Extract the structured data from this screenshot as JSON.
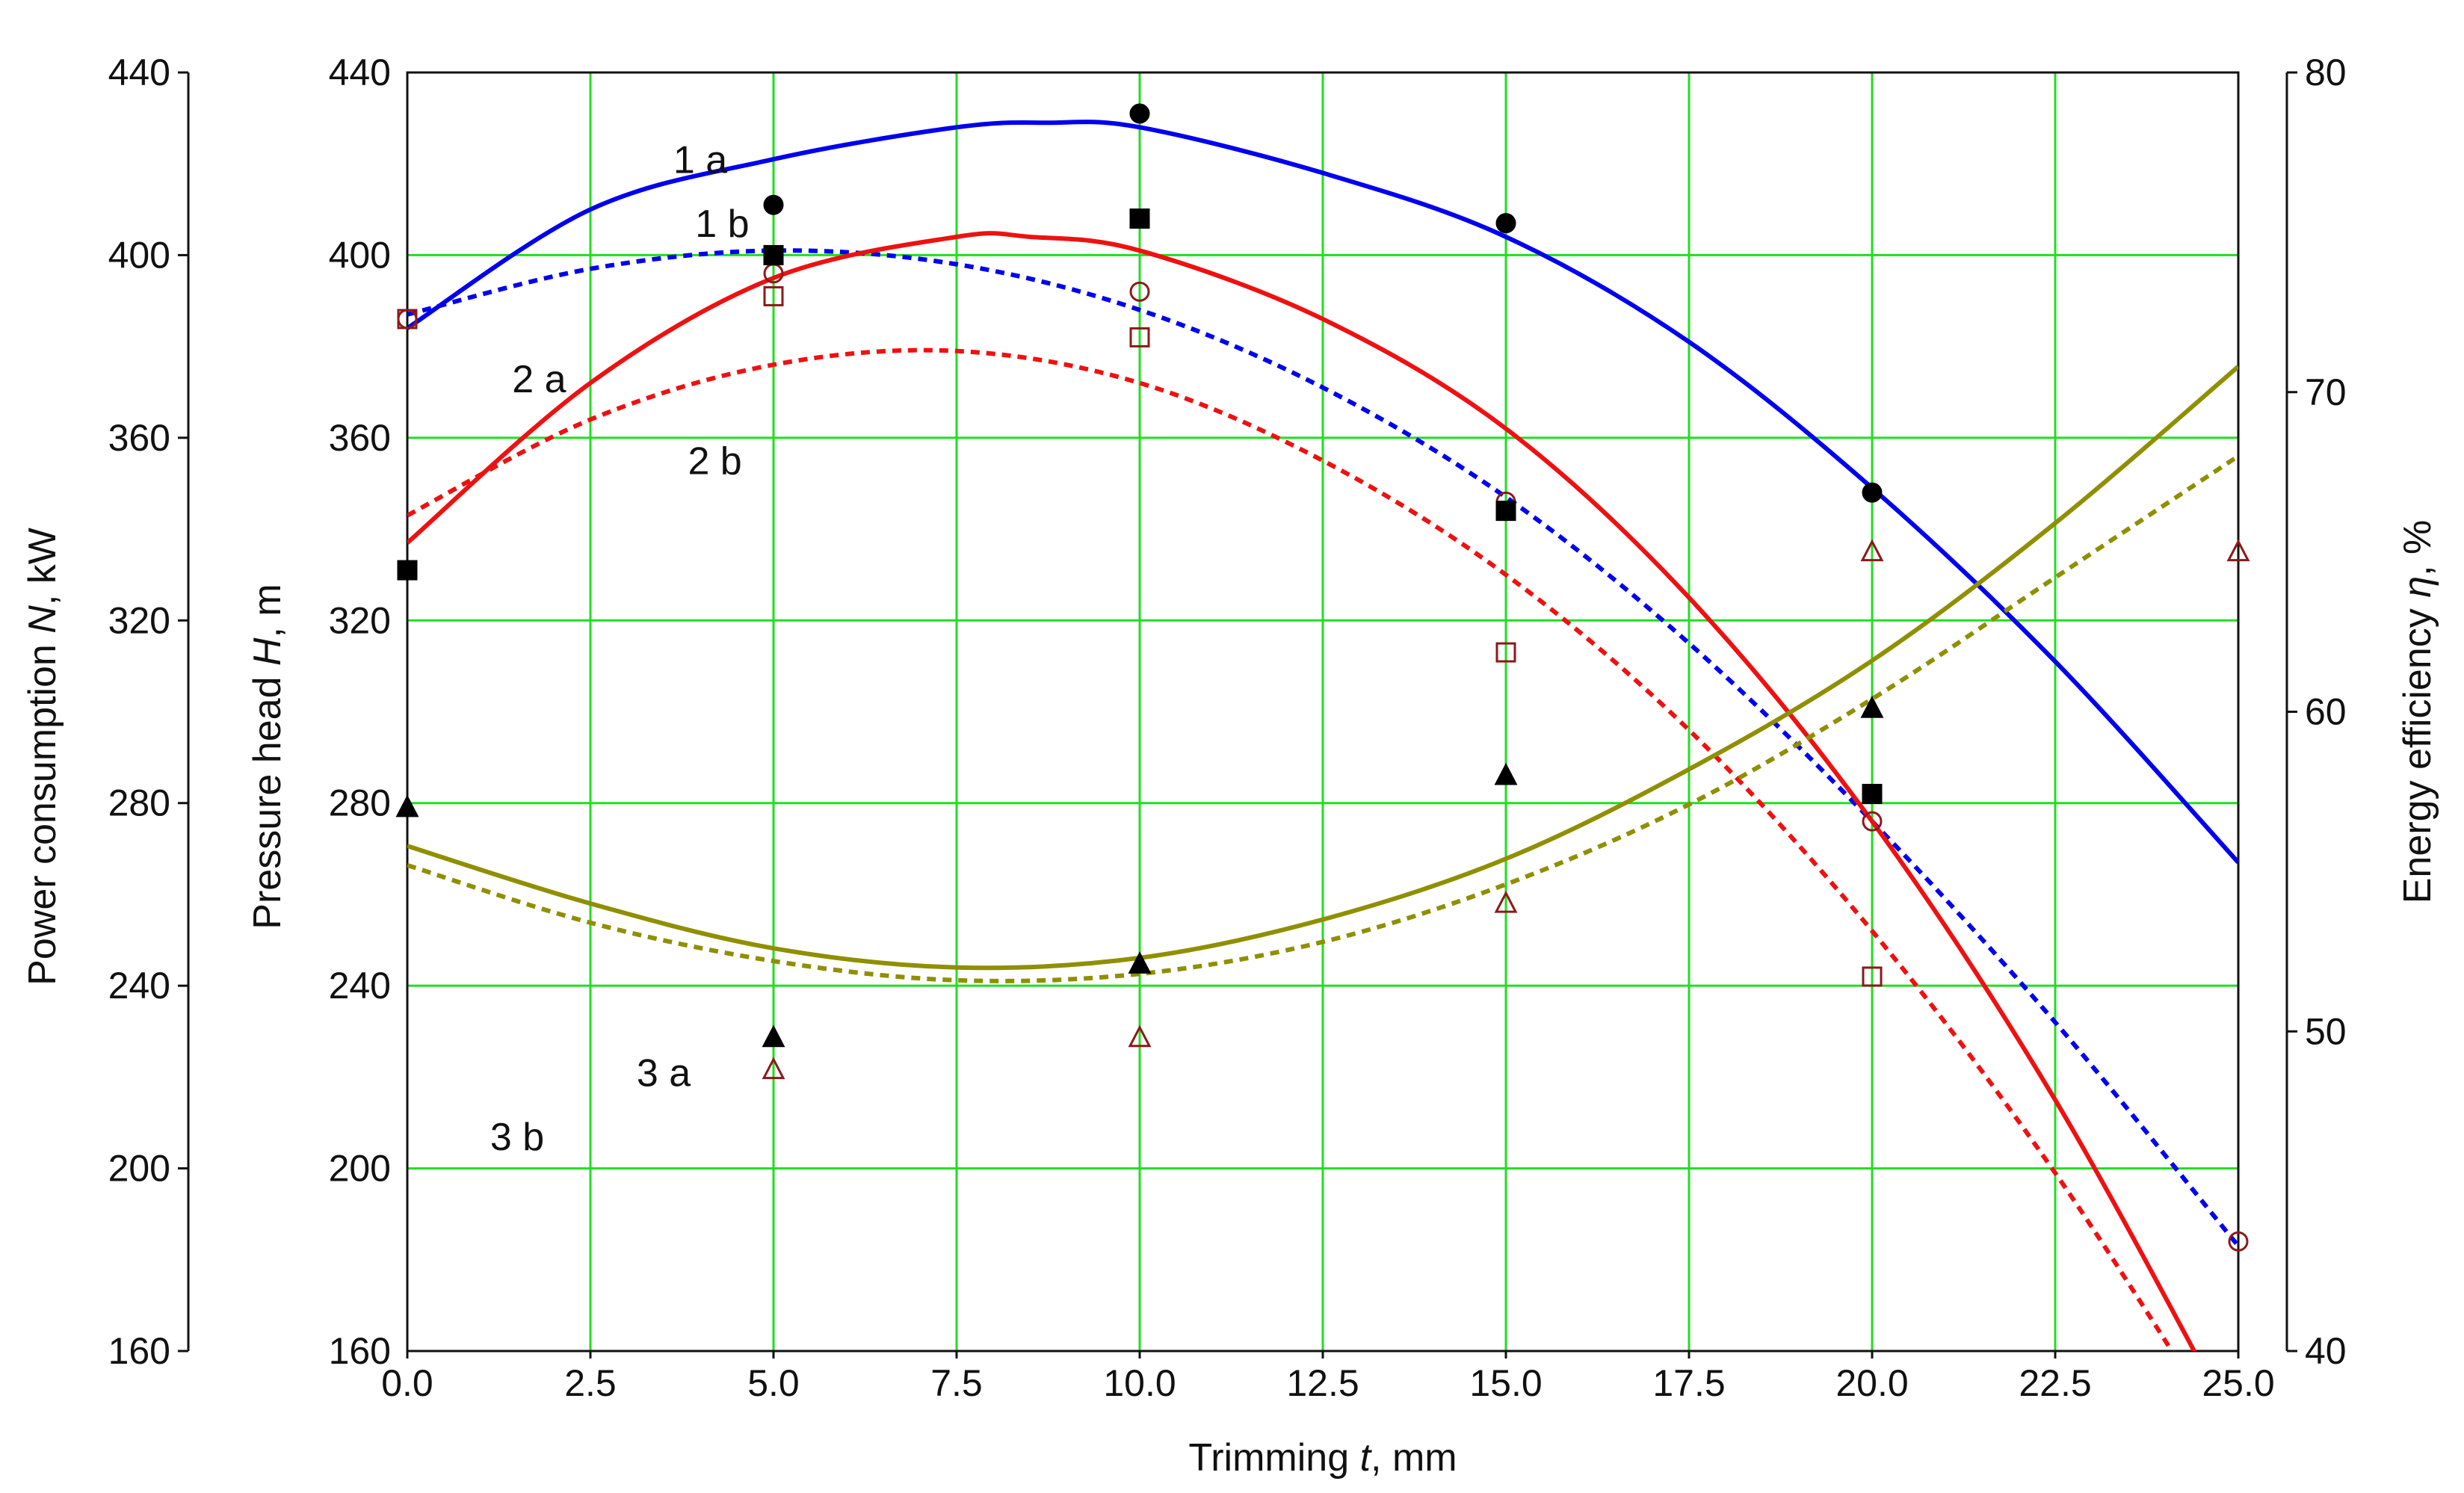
{
  "chart_data": {
    "type": "scatter",
    "title": "",
    "x_axis": {
      "title_parts": [
        "Trimming ",
        "t",
        ", mm"
      ],
      "range": [
        0,
        25
      ],
      "ticks": [
        0,
        2.5,
        5,
        7.5,
        10,
        12.5,
        15,
        17.5,
        20,
        22.5,
        25
      ],
      "tick_labels": [
        "0.0",
        "2.5",
        "5.0",
        "7.5",
        "10.0",
        "12.5",
        "15.0",
        "17.5",
        "20.0",
        "22.5",
        "25.0"
      ]
    },
    "y_axis_left_outer": {
      "title_parts": [
        "Power consumption ",
        "N",
        ", kW"
      ],
      "range": [
        160,
        440
      ],
      "tick_labels": [
        "160",
        "200",
        "240",
        "280",
        "320",
        "360",
        "400",
        "440"
      ]
    },
    "y_axis_left_inner": {
      "title_parts": [
        "Pressure head ",
        "H",
        ", m"
      ],
      "range": [
        160,
        440
      ],
      "tick_labels": [
        "160",
        "200",
        "240",
        "280",
        "320",
        "360",
        "400",
        "440"
      ]
    },
    "y_axis_right": {
      "title_parts": [
        "Energy efficiency ",
        "η",
        ", %"
      ],
      "range": [
        40,
        80
      ],
      "tick_labels": [
        "40",
        "50",
        "60",
        "70",
        "80"
      ]
    },
    "grid": true,
    "series": [
      {
        "name": "1 a",
        "label_pos": [
          4.0,
          418
        ],
        "color": "#0000ee",
        "style": "solid",
        "marker": "filled-circle",
        "axis": "head",
        "fit": [
          [
            0,
            384
          ],
          [
            2.5,
            410
          ],
          [
            5,
            421
          ],
          [
            7.5,
            428
          ],
          [
            8.75,
            429
          ],
          [
            10,
            428
          ],
          [
            12.5,
            418
          ],
          [
            15,
            404
          ],
          [
            17.5,
            381
          ],
          [
            20,
            349
          ],
          [
            22.5,
            311
          ],
          [
            25,
            267
          ]
        ],
        "points": [
          [
            5,
            411
          ],
          [
            10,
            431
          ],
          [
            15,
            407
          ],
          [
            20,
            348
          ]
        ]
      },
      {
        "name": "1 b",
        "label_pos": [
          4.3,
          404
        ],
        "color": "#0000ee",
        "style": "dashed",
        "marker": "open-circle",
        "axis": "head",
        "fit": [
          [
            0,
            387
          ],
          [
            2.5,
            397
          ],
          [
            5,
            401
          ],
          [
            7.5,
            398
          ],
          [
            10,
            388
          ],
          [
            12.5,
            371
          ],
          [
            15,
            347
          ],
          [
            17.5,
            315
          ],
          [
            20,
            276
          ],
          [
            22.5,
            232
          ],
          [
            25,
            183
          ]
        ],
        "points": [
          [
            0,
            386
          ],
          [
            5,
            396
          ],
          [
            10,
            392
          ],
          [
            15,
            346
          ],
          [
            20,
            276
          ],
          [
            25,
            184
          ]
        ]
      },
      {
        "name": "2 a",
        "label_pos": [
          1.8,
          370
        ],
        "color": "#ee1111",
        "style": "solid",
        "marker": "filled-square",
        "axis": "power",
        "fit": [
          [
            0,
            337
          ],
          [
            2.5,
            372
          ],
          [
            5,
            395
          ],
          [
            7.5,
            404
          ],
          [
            8.5,
            404
          ],
          [
            10,
            401
          ],
          [
            12.5,
            386
          ],
          [
            15,
            362
          ],
          [
            17.5,
            325
          ],
          [
            20,
            276
          ],
          [
            22.5,
            215
          ],
          [
            25,
            142
          ]
        ],
        "points": [
          [
            0,
            331
          ],
          [
            5,
            400
          ],
          [
            10,
            408
          ],
          [
            15,
            344
          ],
          [
            20,
            282
          ]
        ]
      },
      {
        "name": "2 b",
        "label_pos": [
          4.2,
          352
        ],
        "color": "#ee1111",
        "style": "dashed",
        "marker": "open-square",
        "axis": "power",
        "fit": [
          [
            0,
            343
          ],
          [
            2.5,
            364
          ],
          [
            5,
            376
          ],
          [
            7.5,
            379
          ],
          [
            10,
            372
          ],
          [
            12.5,
            355
          ],
          [
            15,
            330
          ],
          [
            17.5,
            296
          ],
          [
            20,
            252
          ],
          [
            22.5,
            199
          ],
          [
            25,
            137
          ]
        ],
        "points": [
          [
            0,
            386
          ],
          [
            5,
            391
          ],
          [
            10,
            382
          ],
          [
            15,
            313
          ],
          [
            20,
            242
          ]
        ]
      },
      {
        "name": "3 a",
        "label_pos": [
          3.5,
          218
        ],
        "color": "#8f8f00",
        "style": "solid",
        "marker": "filled-triangle",
        "axis": "efficiency",
        "fit": [
          [
            0,
            55.8
          ],
          [
            2.5,
            54.0
          ],
          [
            5,
            52.6
          ],
          [
            7.5,
            52.0
          ],
          [
            10,
            52.3
          ],
          [
            12.5,
            53.5
          ],
          [
            15,
            55.4
          ],
          [
            17.5,
            58.2
          ],
          [
            20,
            61.6
          ],
          [
            22.5,
            65.9
          ],
          [
            25,
            70.8
          ]
        ],
        "points": [
          [
            0,
            57.0
          ],
          [
            5,
            49.8
          ],
          [
            10,
            52.1
          ],
          [
            15,
            58.0
          ],
          [
            20,
            60.1
          ]
        ]
      },
      {
        "name": "3 b",
        "label_pos": [
          1.5,
          204
        ],
        "color": "#8f8f00",
        "style": "dashed",
        "marker": "open-triangle",
        "axis": "efficiency",
        "fit": [
          [
            0,
            55.2
          ],
          [
            2.5,
            53.4
          ],
          [
            5,
            52.2
          ],
          [
            7.5,
            51.6
          ],
          [
            10,
            51.8
          ],
          [
            12.5,
            52.8
          ],
          [
            15,
            54.6
          ],
          [
            17.5,
            57.1
          ],
          [
            20,
            60.4
          ],
          [
            22.5,
            64.2
          ],
          [
            25,
            68.0
          ]
        ],
        "points": [
          [
            5,
            48.8
          ],
          [
            10,
            49.8
          ],
          [
            15,
            54.0
          ],
          [
            20,
            65.0
          ],
          [
            25,
            65.0
          ]
        ]
      }
    ]
  }
}
